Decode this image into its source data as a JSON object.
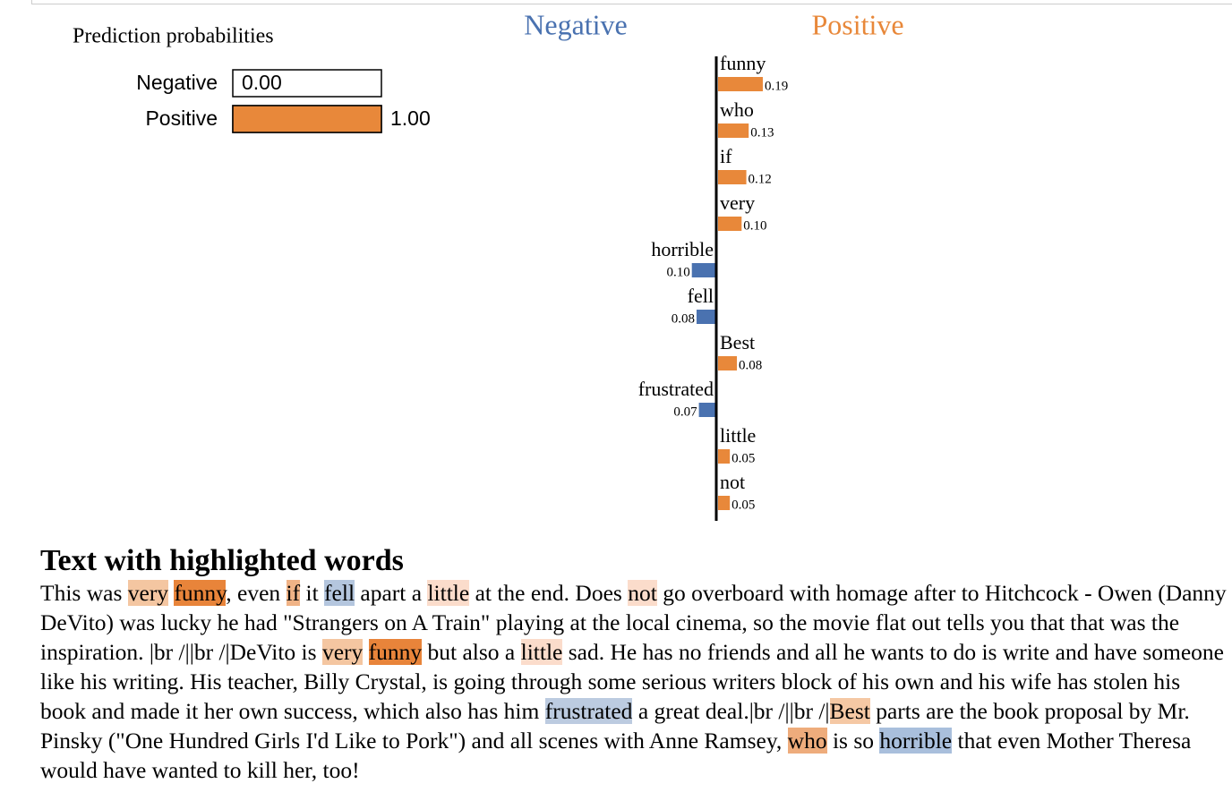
{
  "chart_data": [
    {
      "type": "hbar",
      "title": "Prediction probabilities",
      "categories": [
        "Negative",
        "Positive"
      ],
      "values": [
        0.0,
        1.0
      ],
      "value_labels": [
        "0.00",
        "1.00"
      ],
      "color": "#e8883a"
    },
    {
      "type": "diverging-bar",
      "categories": [
        "funny",
        "who",
        "if",
        "very",
        "horrible",
        "fell",
        "Best",
        "frustrated",
        "little",
        "not"
      ],
      "series": [
        {
          "name": "Negative",
          "color": "#4a72b0",
          "values": [
            null,
            null,
            null,
            null,
            0.1,
            0.08,
            null,
            0.07,
            null,
            null
          ],
          "value_labels": [
            null,
            null,
            null,
            null,
            "0.10",
            "0.08",
            null,
            "0.07",
            null,
            null
          ]
        },
        {
          "name": "Positive",
          "color": "#e8883a",
          "values": [
            0.19,
            0.13,
            0.12,
            0.1,
            null,
            null,
            0.08,
            null,
            0.05,
            0.05
          ],
          "value_labels": [
            "0.19",
            "0.13",
            "0.12",
            "0.10",
            null,
            null,
            "0.08",
            null,
            "0.05",
            "0.05"
          ]
        }
      ]
    }
  ],
  "text_section": {
    "title": "Text with highlighted words",
    "segments": [
      {
        "text": "This was "
      },
      {
        "text": "very",
        "color": "#f4c6a1"
      },
      {
        "text": " "
      },
      {
        "text": "funny",
        "color": "#e8843a"
      },
      {
        "text": ", even "
      },
      {
        "text": "if",
        "color": "#f0b386"
      },
      {
        "text": " it "
      },
      {
        "text": "fell",
        "color": "#b4c6de"
      },
      {
        "text": " apart a "
      },
      {
        "text": "little",
        "color": "#fbdccb"
      },
      {
        "text": " at the end. Does "
      },
      {
        "text": "not",
        "color": "#fbdccb"
      },
      {
        "text": " go overboard with homage after to Hitchcock - Owen (Danny DeVito) was lucky he had \"Strangers on A Train\" playing at the local cinema, so the movie flat out tells you that that was the inspiration. |br /||br /|DeVito is "
      },
      {
        "text": "very",
        "color": "#f4c6a1"
      },
      {
        "text": " "
      },
      {
        "text": "funny",
        "color": "#e8843a"
      },
      {
        "text": " but also a "
      },
      {
        "text": "little",
        "color": "#fbdccb"
      },
      {
        "text": " sad. He has no friends and all he wants to do is write and have someone like his writing. His teacher, Billy Crystal, is going through some serious writers block of his own and his wife has stolen his book and made it her own success, which also has him "
      },
      {
        "text": "frustrated",
        "color": "#bccbe0"
      },
      {
        "text": " a great deal.|br /||br /|"
      },
      {
        "text": "Best",
        "color": "#f5c8a4"
      },
      {
        "text": " parts are the book proposal by Mr. Pinsky (\"One Hundred Girls I'd Like to Pork\") and all scenes with Anne Ramsey, "
      },
      {
        "text": "who",
        "color": "#eeac7c"
      },
      {
        "text": " is so "
      },
      {
        "text": "horrible",
        "color": "#a9bfdc"
      },
      {
        "text": " that even Mother Theresa would have wanted to kill her, too!"
      }
    ]
  }
}
